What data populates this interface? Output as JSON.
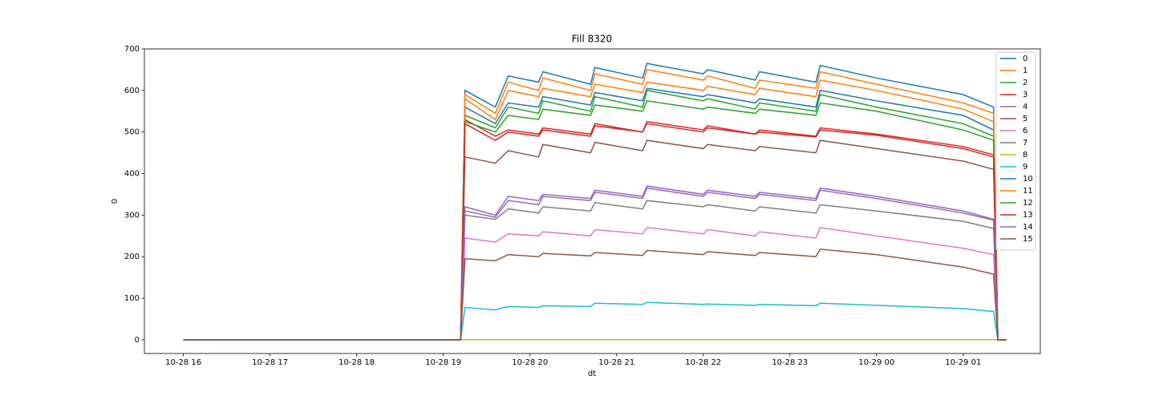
{
  "chart_data": {
    "type": "line",
    "title": "Fill 8320",
    "x_label": "dt",
    "y_label": "0",
    "x": [
      16,
      19.2,
      19.25,
      19.6,
      19.75,
      20.1,
      20.15,
      20.7,
      20.75,
      21.3,
      21.35,
      22,
      22.05,
      22.6,
      22.65,
      23.3,
      23.35,
      24,
      25,
      25.35,
      25.4,
      25.5
    ],
    "xlim": [
      15.55,
      25.89
    ],
    "xticks": [
      {
        "value": 16,
        "label": "10-28 16"
      },
      {
        "value": 17,
        "label": "10-28 17"
      },
      {
        "value": 18,
        "label": "10-28 18"
      },
      {
        "value": 19,
        "label": "10-28 19"
      },
      {
        "value": 20,
        "label": "10-28 20"
      },
      {
        "value": 21,
        "label": "10-28 21"
      },
      {
        "value": 22,
        "label": "10-28 22"
      },
      {
        "value": 23,
        "label": "10-28 23"
      },
      {
        "value": 24,
        "label": "10-29 00"
      },
      {
        "value": 25,
        "label": "10-29 01"
      }
    ],
    "ylim": [
      -33,
      700
    ],
    "yticks": [
      0,
      100,
      200,
      300,
      400,
      500,
      600,
      700
    ],
    "grid": false,
    "legend": "upper right",
    "series": [
      {
        "name": "0",
        "color": "#1f77b4",
        "values": [
          0,
          0,
          600,
          560,
          635,
          620,
          645,
          615,
          655,
          630,
          665,
          640,
          650,
          625,
          645,
          620,
          660,
          630,
          590,
          560,
          0,
          0
        ]
      },
      {
        "name": "1",
        "color": "#ff7f0e",
        "values": [
          0,
          0,
          590,
          545,
          620,
          600,
          630,
          600,
          640,
          615,
          650,
          625,
          635,
          605,
          625,
          605,
          645,
          615,
          570,
          545,
          0,
          0
        ]
      },
      {
        "name": "2",
        "color": "#2ca02c",
        "values": [
          0,
          0,
          540,
          510,
          560,
          545,
          575,
          550,
          585,
          560,
          600,
          575,
          580,
          555,
          570,
          550,
          590,
          560,
          520,
          490,
          0,
          0
        ]
      },
      {
        "name": "3",
        "color": "#d62728",
        "values": [
          0,
          0,
          530,
          490,
          505,
          495,
          510,
          495,
          520,
          500,
          525,
          505,
          515,
          495,
          505,
          490,
          510,
          495,
          465,
          445,
          0,
          0
        ]
      },
      {
        "name": "4",
        "color": "#9467bd",
        "values": [
          0,
          0,
          320,
          300,
          345,
          335,
          350,
          340,
          360,
          345,
          370,
          350,
          360,
          345,
          355,
          340,
          365,
          345,
          310,
          290,
          0,
          0
        ]
      },
      {
        "name": "5",
        "color": "#8c564b",
        "values": [
          0,
          0,
          440,
          425,
          455,
          440,
          470,
          450,
          475,
          455,
          480,
          460,
          470,
          455,
          465,
          450,
          480,
          460,
          430,
          410,
          0,
          0
        ]
      },
      {
        "name": "6",
        "color": "#e377c2",
        "values": [
          0,
          0,
          245,
          235,
          255,
          250,
          260,
          250,
          265,
          255,
          270,
          255,
          265,
          250,
          260,
          245,
          270,
          250,
          220,
          205,
          0,
          0
        ]
      },
      {
        "name": "7",
        "color": "#7f7f7f",
        "values": [
          0,
          0,
          300,
          290,
          315,
          305,
          320,
          310,
          330,
          315,
          335,
          320,
          325,
          310,
          320,
          305,
          325,
          310,
          285,
          268,
          0,
          0
        ]
      },
      {
        "name": "8",
        "color": "#bcbd22",
        "values": [
          0,
          0,
          0,
          0,
          0,
          0,
          0,
          0,
          0,
          0,
          0,
          0,
          0,
          0,
          0,
          0,
          0,
          0,
          0,
          0,
          0,
          0
        ]
      },
      {
        "name": "9",
        "color": "#17becf",
        "values": [
          0,
          0,
          78,
          72,
          80,
          78,
          82,
          80,
          88,
          85,
          90,
          85,
          86,
          83,
          85,
          82,
          88,
          83,
          75,
          68,
          0,
          0
        ]
      },
      {
        "name": "10",
        "color": "#1f77b4",
        "values": [
          0,
          0,
          560,
          520,
          570,
          560,
          585,
          565,
          595,
          575,
          605,
          585,
          590,
          570,
          580,
          560,
          600,
          575,
          540,
          505,
          0,
          0
        ]
      },
      {
        "name": "11",
        "color": "#ff7f0e",
        "values": [
          0,
          0,
          580,
          530,
          600,
          585,
          605,
          585,
          615,
          595,
          620,
          600,
          610,
          590,
          605,
          585,
          625,
          600,
          555,
          525,
          0,
          0
        ]
      },
      {
        "name": "12",
        "color": "#2ca02c",
        "values": [
          0,
          0,
          525,
          500,
          540,
          530,
          555,
          540,
          565,
          550,
          575,
          555,
          560,
          545,
          555,
          540,
          570,
          550,
          505,
          480,
          0,
          0
        ]
      },
      {
        "name": "13",
        "color": "#d62728",
        "values": [
          0,
          0,
          520,
          480,
          500,
          490,
          505,
          490,
          515,
          500,
          520,
          500,
          510,
          495,
          500,
          488,
          505,
          492,
          460,
          440,
          0,
          0
        ]
      },
      {
        "name": "14",
        "color": "#9467bd",
        "values": [
          0,
          0,
          310,
          295,
          335,
          325,
          345,
          335,
          355,
          340,
          365,
          345,
          355,
          340,
          350,
          335,
          360,
          340,
          305,
          288,
          0,
          0
        ]
      },
      {
        "name": "15",
        "color": "#8c564b",
        "values": [
          0,
          0,
          195,
          190,
          205,
          200,
          208,
          202,
          210,
          203,
          215,
          205,
          212,
          203,
          210,
          200,
          218,
          205,
          175,
          158,
          0,
          0
        ]
      }
    ]
  }
}
